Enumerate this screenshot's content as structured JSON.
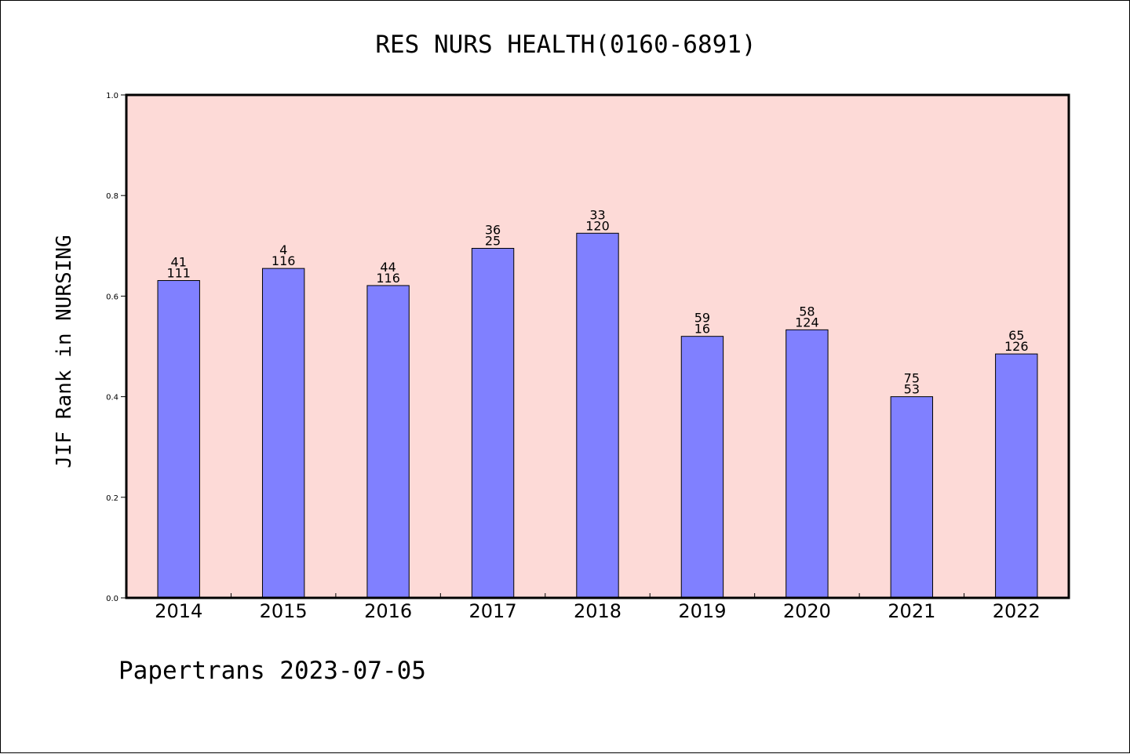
{
  "chart_data": {
    "type": "bar",
    "title": "RES NURS HEALTH(0160-6891)",
    "ylabel": "JIF Rank in NURSING",
    "xlabel": "",
    "ylim": [
      0,
      1.0
    ],
    "yticks": [
      "0.0",
      "0.2",
      "0.4",
      "0.6",
      "0.8",
      "1.0"
    ],
    "categories": [
      "2014",
      "2015",
      "2016",
      "2017",
      "2018",
      "2019",
      "2020",
      "2021",
      "2022"
    ],
    "values": [
      0.631,
      0.655,
      0.621,
      0.695,
      0.725,
      0.52,
      0.533,
      0.4,
      0.485
    ],
    "labels_top": [
      "41",
      "4",
      "44",
      "36",
      "33",
      "59",
      "58",
      "75",
      "65"
    ],
    "labels_bottom": [
      "111",
      "116",
      "116",
      "25",
      "120",
      "16",
      "124",
      "53",
      "126"
    ],
    "plot_background": "#fddad7",
    "bar_color": "#8080ff",
    "grid": false
  },
  "footer": {
    "text": "Papertrans 2023-07-05"
  }
}
